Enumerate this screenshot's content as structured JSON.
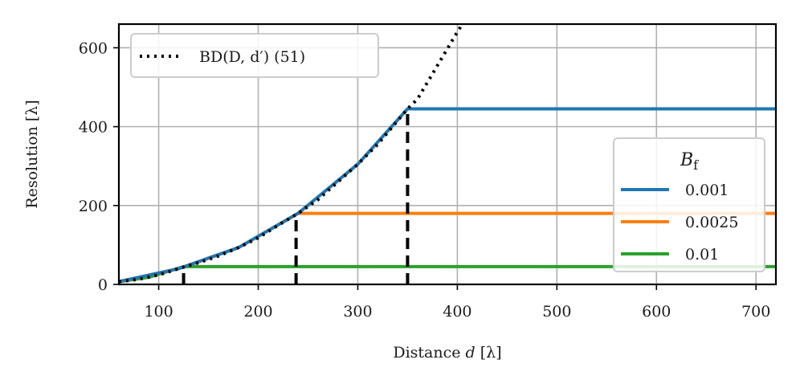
{
  "chart_data": {
    "type": "line",
    "xlabel": "Distance d [λ]",
    "ylabel": "Resolution [λ]",
    "xlim": [
      60,
      720
    ],
    "ylim": [
      0,
      660
    ],
    "xticks": [
      100,
      200,
      300,
      400,
      500,
      600,
      700
    ],
    "yticks": [
      0,
      200,
      400,
      600
    ],
    "grid": true,
    "curve": {
      "name": "BD(D, d′) (51)",
      "color": "#000000",
      "style": "dotted",
      "x": [
        60,
        80,
        100,
        120,
        140,
        160,
        180,
        200,
        220,
        240,
        260,
        280,
        300,
        320,
        340,
        350,
        360,
        380,
        400,
        405
      ],
      "y": [
        7,
        13,
        24,
        40,
        55,
        72,
        93,
        118,
        150,
        180,
        215,
        260,
        305,
        355,
        415,
        445,
        470,
        555,
        640,
        660
      ]
    },
    "legend_title": "B_f",
    "series": [
      {
        "name": "0.001",
        "color": "#1f77b4",
        "x": [
          60,
          120,
          180,
          240,
          300,
          350,
          720
        ],
        "y": [
          7,
          40,
          93,
          180,
          305,
          445,
          445
        ]
      },
      {
        "name": "0.0025",
        "color": "#ff7f0e",
        "x": [
          60,
          120,
          180,
          240,
          720
        ],
        "y": [
          7,
          40,
          93,
          180,
          180
        ]
      },
      {
        "name": "0.01",
        "color": "#2ca02c",
        "x": [
          60,
          90,
          125,
          720
        ],
        "y": [
          7,
          18,
          45,
          45
        ]
      }
    ],
    "cutoffs": [
      {
        "x": 125,
        "y": 45,
        "color": "#000000",
        "style": "dashed"
      },
      {
        "x": 238,
        "y": 180,
        "color": "#000000",
        "style": "dashed"
      },
      {
        "x": 350,
        "y": 445,
        "color": "#000000",
        "style": "dashed"
      }
    ],
    "legend_bd_position": "top-left",
    "legend_bf_position": "right"
  }
}
